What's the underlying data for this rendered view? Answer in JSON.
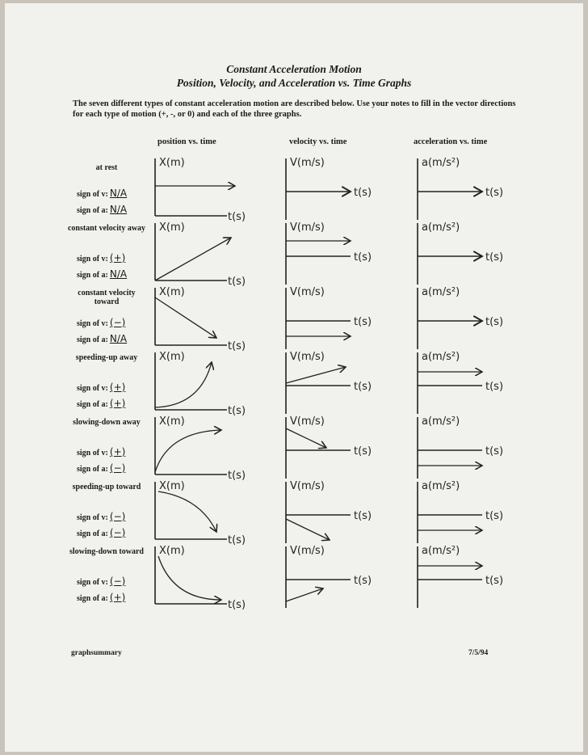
{
  "title_line1": "Constant Acceleration Motion",
  "title_line2": "Position, Velocity, and Acceleration vs. Time Graphs",
  "intro": "The seven different types of constant acceleration motion are described below.  Use your notes to fill in the vector directions for each type of motion (+, -, or 0) and each of the three graphs.",
  "columns": {
    "position": "position vs. time",
    "velocity": "velocity vs. time",
    "acceleration": "acceleration vs. time"
  },
  "sign_v_label": "sign of v:",
  "sign_a_label": "sign of a:",
  "axis_labels": {
    "position": "X(m)",
    "velocity": "V(m/s)",
    "acceleration": "a(m/s²)",
    "time": "t(s)"
  },
  "rows": [
    {
      "motion": "at rest",
      "sign_v": "N/A",
      "sign_a": "N/A",
      "pos_shape": "flat",
      "vel_shape": "zero",
      "acc_shape": "zero"
    },
    {
      "motion": "constant velocity away",
      "sign_v": "(+)",
      "sign_a": "N/A",
      "pos_shape": "linear-up",
      "vel_shape": "flat-pos",
      "acc_shape": "zero"
    },
    {
      "motion": "constant velocity toward",
      "sign_v": "(−)",
      "sign_a": "N/A",
      "pos_shape": "linear-down",
      "vel_shape": "flat-neg",
      "acc_shape": "zero"
    },
    {
      "motion": "speeding-up away",
      "sign_v": "(+)",
      "sign_a": "(+)",
      "pos_shape": "concave-up-rise",
      "vel_shape": "rising-pos",
      "acc_shape": "flat-pos"
    },
    {
      "motion": "slowing-down away",
      "sign_v": "(+)",
      "sign_a": "(−)",
      "pos_shape": "concave-down-rise",
      "vel_shape": "falling-pos",
      "acc_shape": "flat-neg"
    },
    {
      "motion": "speeding-up toward",
      "sign_v": "(−)",
      "sign_a": "(−)",
      "pos_shape": "concave-down-fall",
      "vel_shape": "falling-neg",
      "acc_shape": "flat-neg"
    },
    {
      "motion": "slowing-down toward",
      "sign_v": "(−)",
      "sign_a": "(+)",
      "pos_shape": "concave-up-fall",
      "vel_shape": "rising-neg",
      "acc_shape": "flat-pos"
    }
  ],
  "footer": {
    "left": "graphsummary",
    "right": "7/5/94"
  }
}
